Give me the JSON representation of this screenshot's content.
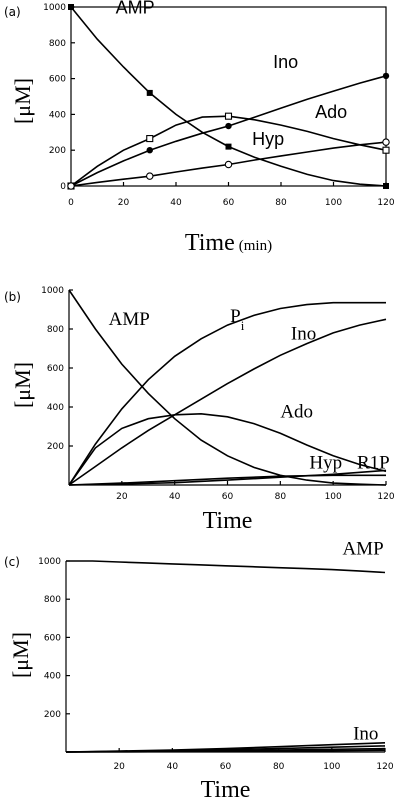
{
  "chart_data": [
    {
      "panel": "(a)",
      "type": "line",
      "xlabel": "Time",
      "xunit": "(min)",
      "ylabel": "[μM]",
      "xlim": [
        0,
        120
      ],
      "ylim": [
        0,
        1000
      ],
      "xticks": [
        0,
        20,
        40,
        60,
        80,
        100,
        120
      ],
      "yticks": [
        0,
        200,
        400,
        600,
        800,
        1000
      ],
      "series": [
        {
          "name": "AMP",
          "marker": "filled-square",
          "x": [
            0,
            30,
            60,
            120
          ],
          "y": [
            1000,
            520,
            220,
            0
          ],
          "curve_x": [
            0,
            10,
            20,
            30,
            40,
            50,
            60,
            70,
            80,
            90,
            100,
            110,
            120
          ],
          "curve_y": [
            1000,
            820,
            665,
            520,
            400,
            300,
            220,
            160,
            110,
            65,
            30,
            10,
            0
          ]
        },
        {
          "name": "Ino",
          "marker": "filled-circle",
          "x": [
            0,
            30,
            60,
            120
          ],
          "y": [
            0,
            200,
            335,
            615
          ],
          "curve_x": [
            0,
            10,
            20,
            30,
            40,
            50,
            60,
            70,
            80,
            90,
            100,
            110,
            120
          ],
          "curve_y": [
            0,
            75,
            140,
            200,
            250,
            295,
            335,
            385,
            435,
            485,
            530,
            575,
            615
          ]
        },
        {
          "name": "Ado",
          "marker": "open-square",
          "x": [
            0,
            30,
            60,
            120
          ],
          "y": [
            0,
            265,
            390,
            200
          ],
          "curve_x": [
            0,
            10,
            20,
            30,
            40,
            50,
            60,
            70,
            80,
            90,
            100,
            110,
            120
          ],
          "curve_y": [
            0,
            110,
            200,
            265,
            340,
            385,
            390,
            370,
            340,
            305,
            265,
            230,
            200
          ]
        },
        {
          "name": "Hyp",
          "marker": "open-circle",
          "x": [
            0,
            30,
            60,
            120
          ],
          "y": [
            0,
            55,
            120,
            245
          ],
          "curve_x": [
            0,
            10,
            20,
            30,
            40,
            50,
            60,
            70,
            80,
            90,
            100,
            110,
            120
          ],
          "curve_y": [
            0,
            20,
            38,
            55,
            78,
            100,
            120,
            145,
            168,
            190,
            212,
            230,
            245
          ]
        }
      ],
      "annotations": [
        {
          "text": "AMP",
          "x": 17,
          "y": 965
        },
        {
          "text": "Ino",
          "x": 77,
          "y": 660
        },
        {
          "text": "Ado",
          "x": 93,
          "y": 380
        },
        {
          "text": "Hyp",
          "x": 69,
          "y": 230
        }
      ]
    },
    {
      "panel": "(b)",
      "type": "line",
      "xlabel": "Time",
      "ylabel": "[μM]",
      "xlim": [
        0,
        120
      ],
      "ylim": [
        0,
        1000
      ],
      "xticks": [
        20,
        40,
        60,
        80,
        100,
        120
      ],
      "yticks": [
        200,
        400,
        600,
        800,
        1000
      ],
      "series": [
        {
          "name": "AMP",
          "x": [
            0,
            10,
            20,
            30,
            40,
            50,
            60,
            70,
            80,
            90,
            100,
            110,
            120
          ],
          "y": [
            1000,
            800,
            620,
            470,
            340,
            230,
            150,
            90,
            50,
            25,
            10,
            4,
            0
          ]
        },
        {
          "name": "Pi",
          "x": [
            0,
            10,
            20,
            30,
            40,
            50,
            60,
            70,
            80,
            90,
            100,
            110,
            120
          ],
          "y": [
            0,
            210,
            390,
            540,
            660,
            750,
            820,
            870,
            905,
            925,
            935,
            935,
            935
          ]
        },
        {
          "name": "Ino",
          "x": [
            0,
            10,
            20,
            30,
            40,
            50,
            60,
            70,
            80,
            90,
            100,
            110,
            120
          ],
          "y": [
            0,
            95,
            190,
            280,
            360,
            440,
            520,
            595,
            665,
            725,
            780,
            820,
            850
          ]
        },
        {
          "name": "Ado",
          "x": [
            0,
            10,
            20,
            30,
            40,
            50,
            60,
            70,
            80,
            90,
            100,
            110,
            120
          ],
          "y": [
            0,
            190,
            290,
            340,
            360,
            365,
            350,
            315,
            265,
            205,
            150,
            105,
            70
          ]
        },
        {
          "name": "Hyp",
          "x": [
            0,
            20,
            40,
            60,
            80,
            100,
            120
          ],
          "y": [
            0,
            10,
            22,
            35,
            45,
            50,
            50
          ]
        },
        {
          "name": "R1P",
          "x": [
            0,
            20,
            40,
            60,
            80,
            100,
            120
          ],
          "y": [
            0,
            5,
            12,
            25,
            40,
            55,
            75
          ]
        }
      ],
      "annotations": [
        {
          "text": "AMP",
          "x": 15,
          "y": 820
        },
        {
          "text": "P",
          "sub": "i",
          "x": 61,
          "y": 835
        },
        {
          "text": "Ino",
          "x": 84,
          "y": 745
        },
        {
          "text": "Ado",
          "x": 80,
          "y": 345
        },
        {
          "text": "Hyp",
          "x": 91,
          "y": 85
        },
        {
          "text": "R1P",
          "x": 109,
          "y": 85
        }
      ]
    },
    {
      "panel": "(c)",
      "type": "line",
      "xlabel": "Time",
      "ylabel": "[μM]",
      "xlim": [
        0,
        120
      ],
      "ylim": [
        0,
        1000
      ],
      "xticks": [
        20,
        40,
        60,
        80,
        100,
        120
      ],
      "yticks": [
        200,
        400,
        600,
        800,
        1000
      ],
      "series": [
        {
          "name": "AMP",
          "x": [
            0,
            10,
            20,
            30,
            40,
            50,
            60,
            70,
            80,
            90,
            100,
            110,
            120
          ],
          "y": [
            1000,
            1000,
            995,
            990,
            985,
            980,
            975,
            970,
            965,
            960,
            955,
            948,
            940
          ]
        },
        {
          "name": "Ino",
          "x": [
            0,
            20,
            40,
            60,
            80,
            100,
            120
          ],
          "y": [
            0,
            5,
            10,
            18,
            28,
            38,
            48
          ]
        },
        {
          "name": "",
          "x": [
            0,
            20,
            40,
            60,
            80,
            100,
            120
          ],
          "y": [
            0,
            3,
            7,
            12,
            18,
            25,
            32
          ]
        },
        {
          "name": "",
          "x": [
            0,
            20,
            40,
            60,
            80,
            100,
            120
          ],
          "y": [
            0,
            2,
            4,
            7,
            10,
            14,
            18
          ]
        },
        {
          "name": "",
          "x": [
            0,
            20,
            40,
            60,
            80,
            100,
            120
          ],
          "y": [
            0,
            1,
            2,
            3,
            5,
            7,
            9
          ]
        }
      ],
      "annotations": [
        {
          "text": "AMP",
          "x": 104,
          "y": 1035
        },
        {
          "text": "Ino",
          "x": 108,
          "y": 65
        }
      ]
    }
  ]
}
